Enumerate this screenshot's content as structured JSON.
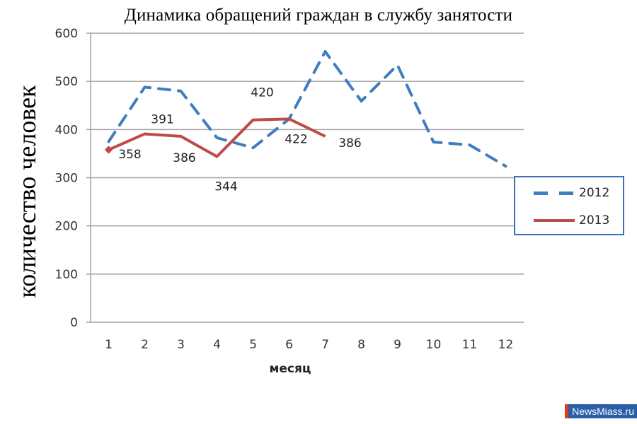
{
  "chart_data": {
    "type": "line",
    "title": "Динамика обращений  граждан в службу занятости",
    "xlabel": "месяц",
    "ylabel": "количество человек",
    "categories": [
      "1",
      "2",
      "3",
      "4",
      "5",
      "6",
      "7",
      "8",
      "9",
      "10",
      "11",
      "12"
    ],
    "ylim": [
      0,
      600
    ],
    "yticks": [
      "0",
      "100",
      "200",
      "300",
      "400",
      "500",
      "600"
    ],
    "grid": true,
    "legend_position": "right",
    "series": [
      {
        "name": "2012",
        "style": "dashed",
        "color": "#3f7cc0",
        "values": [
          375,
          488,
          480,
          383,
          362,
          422,
          562,
          459,
          534,
          374,
          368,
          324
        ]
      },
      {
        "name": "2013",
        "style": "solid",
        "color": "#be4b48",
        "values": [
          358,
          391,
          386,
          344,
          420,
          422,
          386
        ],
        "data_labels": [
          "358",
          "391",
          "386",
          "344",
          "420",
          "422",
          "386"
        ]
      }
    ]
  },
  "legend": {
    "items": [
      {
        "label": "2012"
      },
      {
        "label": "2013"
      }
    ]
  },
  "watermark": {
    "text": "NewsMiass.ru"
  }
}
